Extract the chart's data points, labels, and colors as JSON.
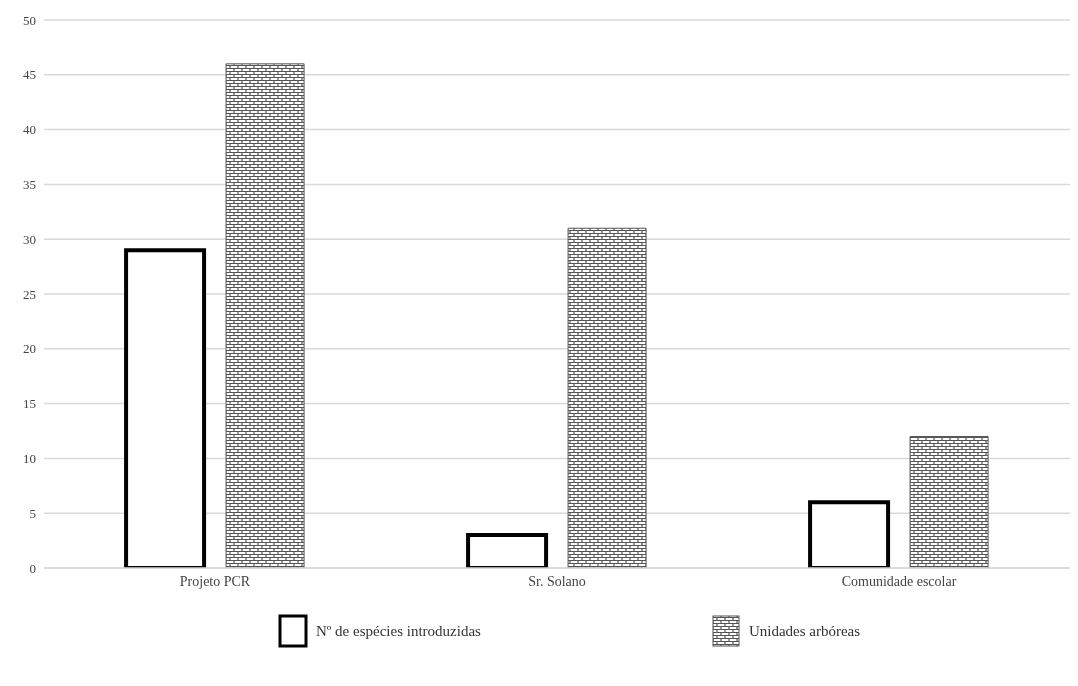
{
  "chart_data": {
    "type": "bar",
    "categories": [
      "Projeto PCR",
      "Sr. Solano",
      "Comunidade escolar"
    ],
    "series": [
      {
        "name": "Nº de espécies introduzidas",
        "color": "#000000",
        "values": [
          29,
          3,
          6
        ]
      },
      {
        "name": "Unidades arbóreas",
        "color": "#555555",
        "values": [
          46,
          31,
          12
        ]
      }
    ],
    "ylim": [
      0,
      50
    ],
    "yticks": [
      0,
      5,
      10,
      15,
      20,
      25,
      30,
      35,
      40,
      45,
      50
    ],
    "grid": "y",
    "legend": "bottom"
  }
}
